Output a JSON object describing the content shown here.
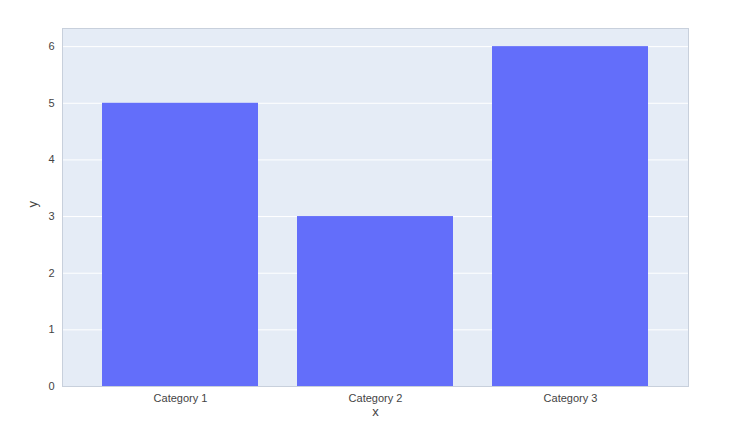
{
  "chart_data": {
    "type": "bar",
    "x_label": "x",
    "y_label": "y",
    "categories": [
      "Category 1",
      "Category 2",
      "Category 3"
    ],
    "values": [
      5,
      3,
      6
    ],
    "color": "#636efa",
    "ylim": [
      0,
      6.32
    ],
    "yticks": [
      0,
      1,
      2,
      3,
      4,
      5,
      6
    ],
    "grid": true
  }
}
